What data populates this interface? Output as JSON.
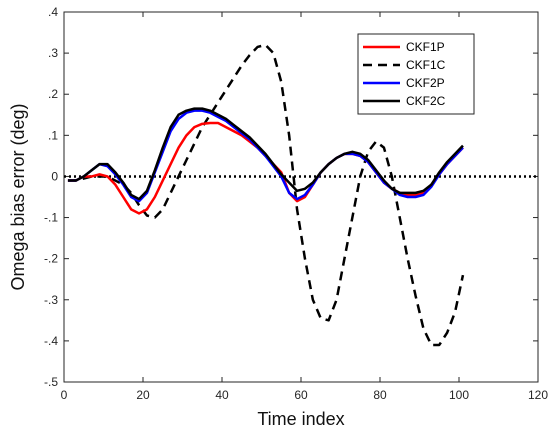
{
  "chart_data": {
    "type": "line",
    "title": "",
    "xlabel": "Time index",
    "ylabel": "Omega bias error (deg)",
    "xlim": [
      0,
      120
    ],
    "ylim": [
      -0.5,
      0.4
    ],
    "xticks": [
      0,
      20,
      40,
      60,
      80,
      100,
      120
    ],
    "yticks": [
      -0.5,
      -0.4,
      -0.3,
      -0.2,
      -0.1,
      0,
      0.1,
      0.2,
      0.3,
      0.4
    ],
    "grid": false,
    "legend_position": "top-right",
    "reference_line": {
      "y": 0,
      "style": "dotted",
      "color": "#000000"
    },
    "x": [
      1,
      3,
      5,
      7,
      9,
      11,
      13,
      15,
      17,
      19,
      21,
      23,
      25,
      27,
      29,
      31,
      33,
      35,
      37,
      39,
      41,
      43,
      45,
      47,
      49,
      51,
      53,
      55,
      57,
      59,
      61,
      63,
      65,
      67,
      69,
      71,
      73,
      75,
      77,
      79,
      81,
      83,
      85,
      87,
      89,
      91,
      93,
      95,
      97,
      99,
      101
    ],
    "series": [
      {
        "name": "CKF1P",
        "color": "#ff0000",
        "dash": "solid",
        "values": [
          -0.01,
          -0.01,
          0,
          0,
          0.005,
          0,
          -0.02,
          -0.05,
          -0.08,
          -0.09,
          -0.08,
          -0.05,
          -0.01,
          0.03,
          0.07,
          0.1,
          0.12,
          0.128,
          0.13,
          0.13,
          0.12,
          0.11,
          0.1,
          0.085,
          0.07,
          0.05,
          0.03,
          0.01,
          -0.04,
          -0.06,
          -0.05,
          -0.02,
          0.01,
          0.03,
          0.045,
          0.055,
          0.055,
          0.05,
          0.035,
          0.01,
          -0.015,
          -0.03,
          -0.04,
          -0.045,
          -0.045,
          -0.04,
          -0.02,
          0.005,
          0.03,
          0.05,
          0.07
        ]
      },
      {
        "name": "CKF1C",
        "color": "#000000",
        "dash": "dashed",
        "values": [
          -0.01,
          -0.01,
          -0.005,
          0,
          0,
          0,
          -0.01,
          -0.02,
          -0.04,
          -0.07,
          -0.095,
          -0.1,
          -0.08,
          -0.04,
          0,
          0.04,
          0.08,
          0.12,
          0.15,
          0.18,
          0.21,
          0.24,
          0.27,
          0.295,
          0.315,
          0.32,
          0.3,
          0.23,
          0.1,
          -0.08,
          -0.2,
          -0.3,
          -0.345,
          -0.35,
          -0.3,
          -0.2,
          -0.1,
          0,
          0.06,
          0.085,
          0.07,
          0,
          -0.1,
          -0.2,
          -0.29,
          -0.37,
          -0.41,
          -0.41,
          -0.38,
          -0.33,
          -0.24
        ]
      },
      {
        "name": "CKF2P",
        "color": "#0000ff",
        "dash": "solid",
        "values": [
          -0.01,
          -0.01,
          0,
          0.015,
          0.03,
          0.025,
          0.005,
          -0.02,
          -0.05,
          -0.06,
          -0.04,
          0.01,
          0.06,
          0.11,
          0.14,
          0.155,
          0.16,
          0.16,
          0.155,
          0.145,
          0.135,
          0.12,
          0.105,
          0.09,
          0.07,
          0.05,
          0.025,
          0,
          -0.04,
          -0.055,
          -0.045,
          -0.02,
          0.01,
          0.03,
          0.045,
          0.055,
          0.055,
          0.05,
          0.035,
          0.01,
          -0.015,
          -0.03,
          -0.045,
          -0.05,
          -0.05,
          -0.045,
          -0.025,
          0.005,
          0.03,
          0.05,
          0.07
        ]
      },
      {
        "name": "CKF2C",
        "color": "#000000",
        "dash": "solid",
        "values": [
          -0.01,
          -0.01,
          0,
          0.015,
          0.03,
          0.03,
          0.01,
          -0.015,
          -0.045,
          -0.055,
          -0.035,
          0.015,
          0.07,
          0.12,
          0.15,
          0.16,
          0.165,
          0.165,
          0.16,
          0.15,
          0.14,
          0.125,
          0.11,
          0.095,
          0.075,
          0.055,
          0.03,
          0.005,
          -0.015,
          -0.035,
          -0.03,
          -0.015,
          0.01,
          0.03,
          0.045,
          0.055,
          0.06,
          0.055,
          0.04,
          0.015,
          -0.01,
          -0.03,
          -0.04,
          -0.04,
          -0.04,
          -0.035,
          -0.02,
          0.01,
          0.035,
          0.055,
          0.075
        ]
      }
    ]
  }
}
